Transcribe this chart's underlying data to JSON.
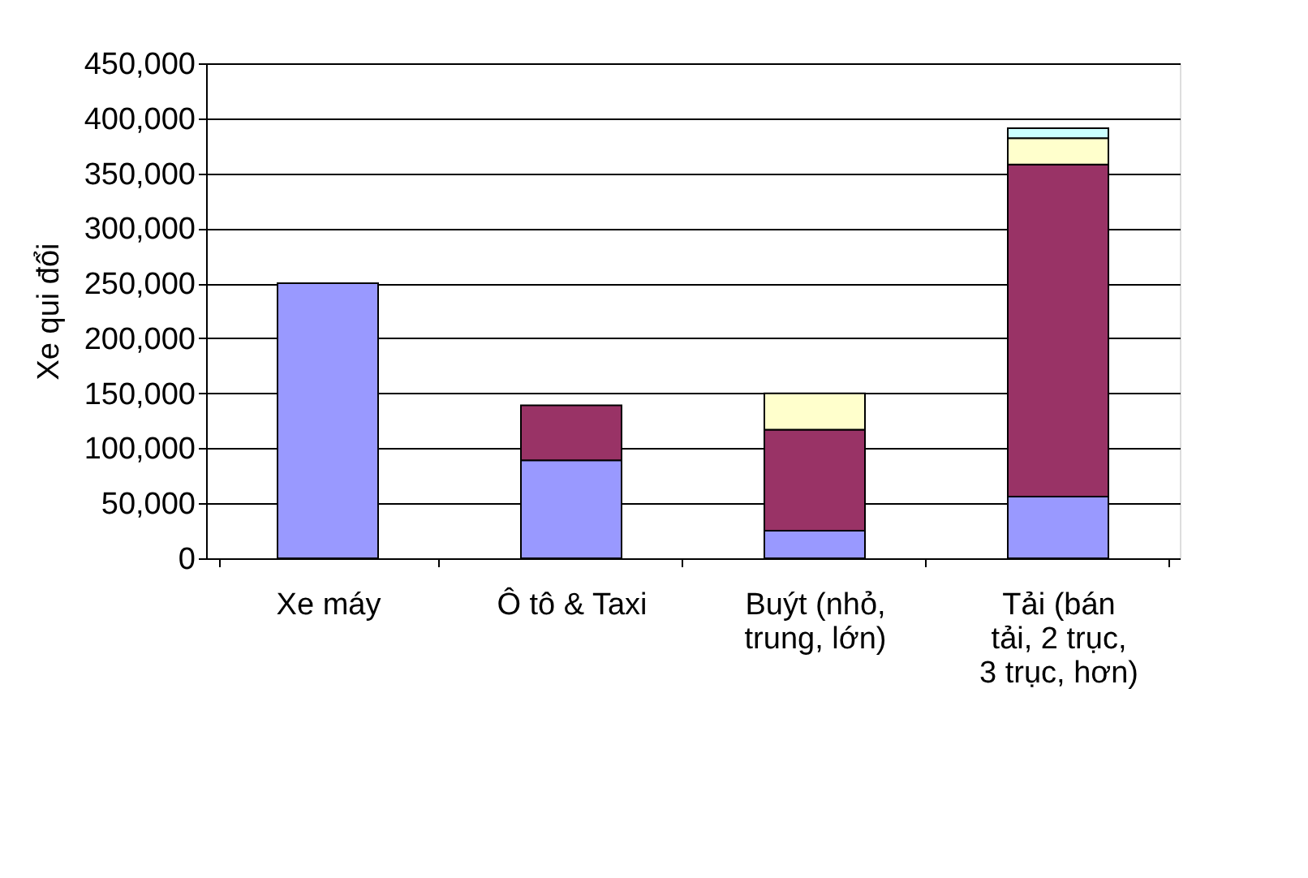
{
  "chart_data": {
    "type": "bar",
    "stacked": true,
    "ylabel": "Xe qui đổi",
    "categories": [
      "Xe máy",
      "Ô tô & Taxi",
      "Buýt (nhỏ, trung, lớn)",
      "Tải (bán tải, 2 trục, 3 trục, hơn)"
    ],
    "series": [
      {
        "color": "#9999ff",
        "values": [
          250000,
          89000,
          25000,
          56000
        ]
      },
      {
        "color": "#993366",
        "values": [
          null,
          50000,
          92000,
          302000
        ]
      },
      {
        "color": "#ffffcc",
        "values": [
          null,
          null,
          33000,
          24000
        ]
      },
      {
        "color": "#ccffff",
        "values": [
          null,
          null,
          null,
          9000
        ]
      }
    ],
    "ylim": [
      0,
      450000
    ],
    "yticks": [
      0,
      {
        "value": 50000,
        "label": "50,000"
      },
      {
        "value": 100000,
        "label": "100,000"
      },
      {
        "value": 150000,
        "label": "150,000"
      },
      {
        "value": 200000,
        "label": "200,000"
      },
      {
        "value": 250000,
        "label": "250,000"
      },
      {
        "value": 300000,
        "label": "300,000"
      },
      {
        "value": 350000,
        "label": "350,000"
      },
      {
        "value": 400000,
        "label": "400,000"
      },
      {
        "value": 450000,
        "label": "450,000"
      }
    ],
    "grid": "y",
    "legend": false
  }
}
